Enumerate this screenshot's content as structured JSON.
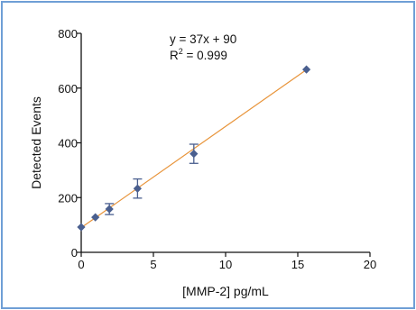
{
  "colors": {
    "frame": "#6f9fd6",
    "fit_line": "#e8943a",
    "marker": "#4a5f8f",
    "axis": "#111111"
  },
  "chart_data": {
    "type": "scatter",
    "xlabel": "[MMP-2] pg/mL",
    "ylabel": "Detected  Events",
    "xlim": [
      0,
      20
    ],
    "ylim": [
      0,
      800
    ],
    "x_ticks": [
      0,
      5,
      10,
      15,
      20
    ],
    "y_ticks": [
      0,
      200,
      400,
      600,
      800
    ],
    "points": [
      {
        "x": 0,
        "y": 92,
        "err": 0
      },
      {
        "x": 0.98,
        "y": 128,
        "err": 0
      },
      {
        "x": 1.95,
        "y": 158,
        "err": 20
      },
      {
        "x": 3.9,
        "y": 233,
        "err": 35
      },
      {
        "x": 7.8,
        "y": 360,
        "err": 35
      },
      {
        "x": 15.6,
        "y": 668,
        "err": 0
      }
    ],
    "fit": {
      "slope": 37,
      "intercept": 90
    },
    "equation": {
      "line1": "y = 37x + 90",
      "r_prefix": "R",
      "r_exp": "2",
      "r_suffix": " = 0.999"
    },
    "grid": false,
    "legend": "none"
  }
}
